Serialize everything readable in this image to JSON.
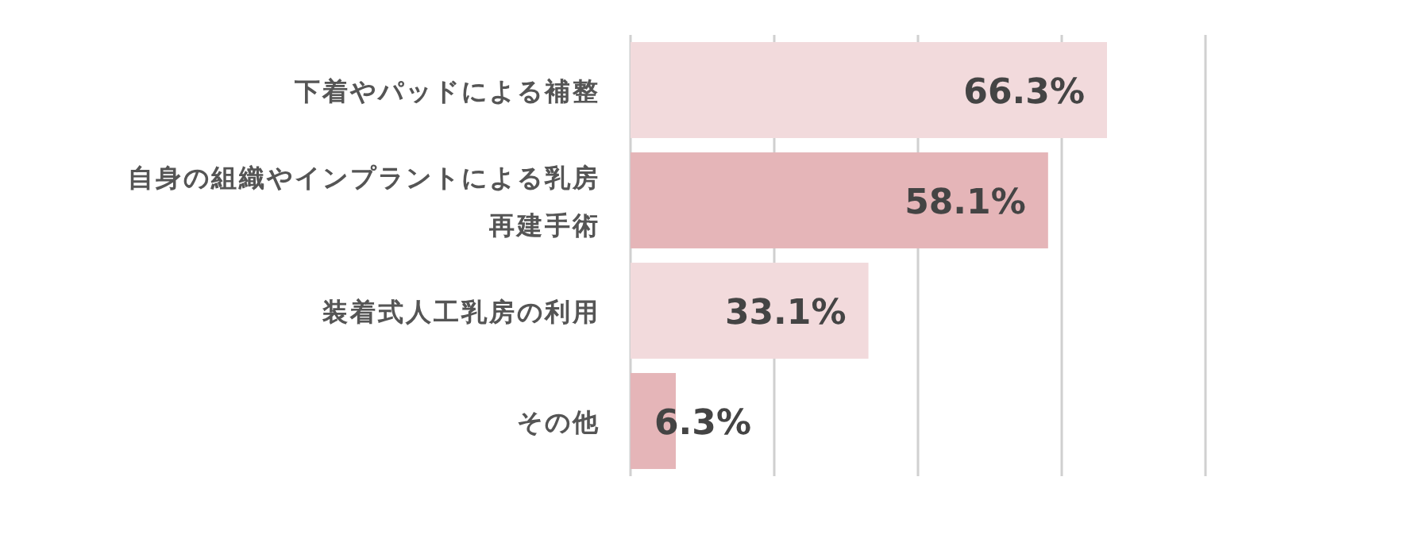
{
  "chart_data": {
    "type": "bar",
    "orientation": "horizontal",
    "categories": [
      "下着やパッドによる補整",
      "自身の組織やインプラントによる乳房再建手術",
      "装着式人工乳房の利用",
      "その他"
    ],
    "values": [
      66.3,
      58.1,
      33.1,
      6.3
    ],
    "colors": [
      "#f2dadc",
      "#e5b5b8",
      "#f2dadc",
      "#e5b5b8"
    ],
    "value_labels": [
      "66.3%",
      "58.1%",
      "33.1%",
      "6.3%"
    ],
    "xlim": [
      0,
      80
    ],
    "xticks": [
      {
        "value": 0,
        "label": null
      },
      {
        "value": 20,
        "label": null
      },
      {
        "value": 40,
        "label": null
      },
      {
        "value": 60,
        "label": null
      },
      {
        "value": 80,
        "label": null
      }
    ],
    "grid": "x",
    "tick_labels": "y"
  }
}
